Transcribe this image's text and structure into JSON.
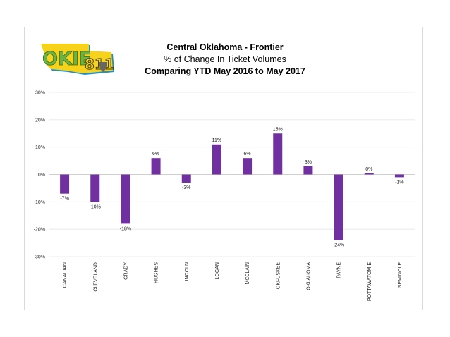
{
  "logo": {
    "text_okie": "OKIE",
    "text_811": "811",
    "colors": {
      "green": "#6db33f",
      "blue": "#1e90c8",
      "yellow": "#f6d21b"
    }
  },
  "chart_data": {
    "type": "bar",
    "title": "Central Oklahoma - Frontier",
    "subtitle": "% of Change In Ticket Volumes",
    "subtitle2": "Comparing YTD May 2016 to May 2017",
    "categories": [
      "CANADIAN",
      "CLEVELAND",
      "GRADY",
      "HUGHES",
      "LINCOLN",
      "LOGAN",
      "MCCLAIN",
      "OKFUSKEE",
      "OKLAHOMA",
      "PAYNE",
      "POTTAWATOMIE",
      "SEMINOLE"
    ],
    "values": [
      -7,
      -10,
      -18,
      6,
      -3,
      11,
      6,
      15,
      3,
      -24,
      0,
      -1
    ],
    "data_labels": [
      "-7%",
      "-10%",
      "-18%",
      "6%",
      "-3%",
      "11%",
      "6%",
      "15%",
      "3%",
      "-24%",
      "0%",
      "-1%"
    ],
    "yticks": [
      30,
      20,
      10,
      0,
      -10,
      -20,
      -30
    ],
    "ytick_labels": [
      "30%",
      "20%",
      "10%",
      "0%",
      "-10%",
      "-20%",
      "-30%"
    ],
    "ylim": [
      -30,
      30
    ],
    "grid": true,
    "bar_color": "#7030a0"
  }
}
